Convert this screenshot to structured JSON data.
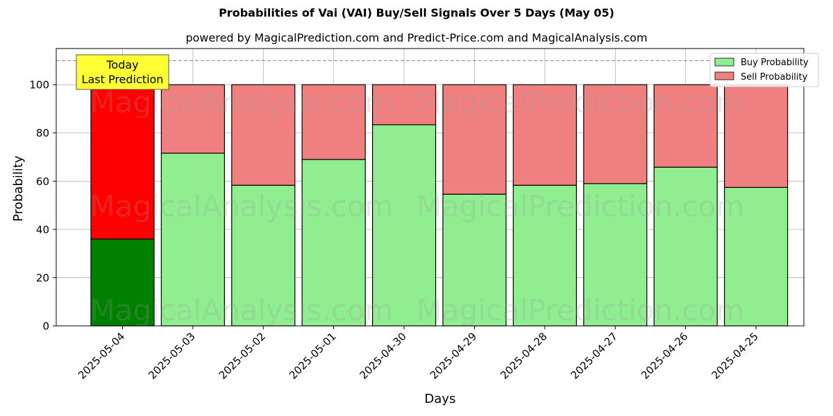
{
  "chart_data": {
    "type": "bar",
    "stacked": true,
    "title": "Probabilities of Vai (VAI) Buy/Sell Signals Over 5 Days (May 05)",
    "subtitle": "powered by MagicalPrediction.com and Predict-Price.com and MagicalAnalysis.com",
    "xlabel": "Days",
    "ylabel": "Probability",
    "ylim": [
      0,
      115
    ],
    "yticks": [
      0,
      20,
      40,
      60,
      80,
      100
    ],
    "grid": true,
    "legend_position": "top-right",
    "reference_line": 110,
    "categories": [
      "2025-05-04",
      "2025-05-03",
      "2025-05-02",
      "2025-05-01",
      "2025-04-30",
      "2025-04-29",
      "2025-04-28",
      "2025-04-27",
      "2025-04-26",
      "2025-04-25"
    ],
    "series": [
      {
        "name": "Buy Probability",
        "values": [
          36,
          71.6,
          58.3,
          69,
          83.4,
          54.6,
          58.3,
          59,
          65.8,
          57.4
        ]
      },
      {
        "name": "Sell Probability",
        "values": [
          64,
          28.4,
          41.7,
          31,
          16.6,
          45.4,
          41.7,
          41,
          34.2,
          42.6
        ]
      }
    ],
    "annotation": {
      "line1": "Today",
      "line2": "Last Prediction"
    },
    "watermarks": [
      "MagicalAnalysis.com",
      "MagicalPrediction.com"
    ],
    "colors": {
      "buy": "#90ee90",
      "sell": "#f08080",
      "buy_highlight": "#008000",
      "sell_highlight": "#ff0000",
      "annotation_bg": "#ffff33",
      "grid": "#b0b0b0"
    }
  }
}
